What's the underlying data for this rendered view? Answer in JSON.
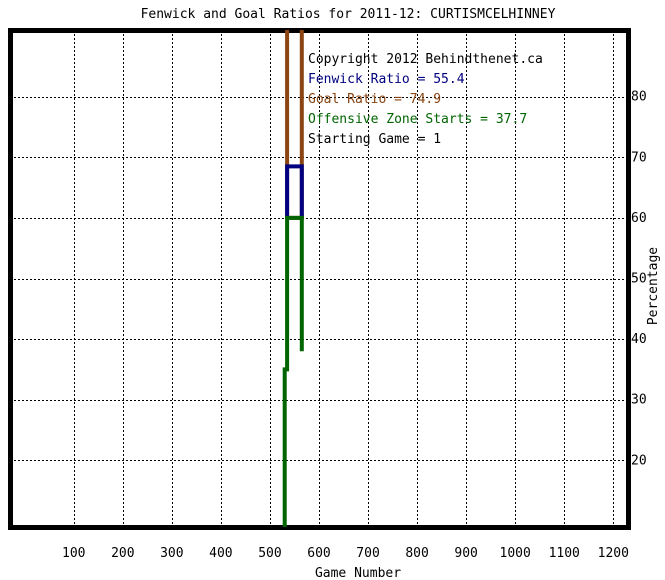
{
  "chart_data": {
    "type": "line",
    "title": "Fenwick and Goal Ratios for 2011-12: CURTISMCELHINNEY",
    "xlabel": "Game Number",
    "ylabel": "Percentage",
    "xlim": [
      -30,
      1230
    ],
    "ylim": [
      9,
      91
    ],
    "x_ticks": [
      100,
      200,
      300,
      400,
      500,
      600,
      700,
      800,
      900,
      1000,
      1100,
      1200
    ],
    "y_ticks": [
      20,
      30,
      40,
      50,
      60,
      70,
      80
    ],
    "grid": true,
    "annotations": [
      {
        "text": "Copyright 2012 Behindthenet.ca",
        "color": "#000000"
      },
      {
        "text": "Fenwick Ratio = 55.4",
        "color": "#000080"
      },
      {
        "text": "Goal Ratio = 74.9",
        "color": "#8b4513"
      },
      {
        "text": "Offensive Zone Starts = 37.7",
        "color": "#006400"
      },
      {
        "text": "Starting Game = 1",
        "color": "#000000"
      }
    ],
    "series": [
      {
        "key": "goal",
        "color": "#8b4513",
        "points": [
          [
            535,
            91
          ],
          [
            535,
            60
          ],
          [
            565,
            60
          ],
          [
            565,
            91
          ],
          [
            565,
            75
          ]
        ]
      },
      {
        "key": "fenwick",
        "color": "#000080",
        "points": [
          [
            535,
            60
          ],
          [
            535,
            68.5
          ],
          [
            565,
            68.5
          ],
          [
            565,
            60
          ]
        ]
      },
      {
        "key": "ozone",
        "color": "#006400",
        "points": [
          [
            530,
            9
          ],
          [
            530,
            35
          ],
          [
            535,
            35
          ],
          [
            535,
            60
          ],
          [
            565,
            60
          ],
          [
            565,
            38
          ]
        ]
      }
    ]
  }
}
